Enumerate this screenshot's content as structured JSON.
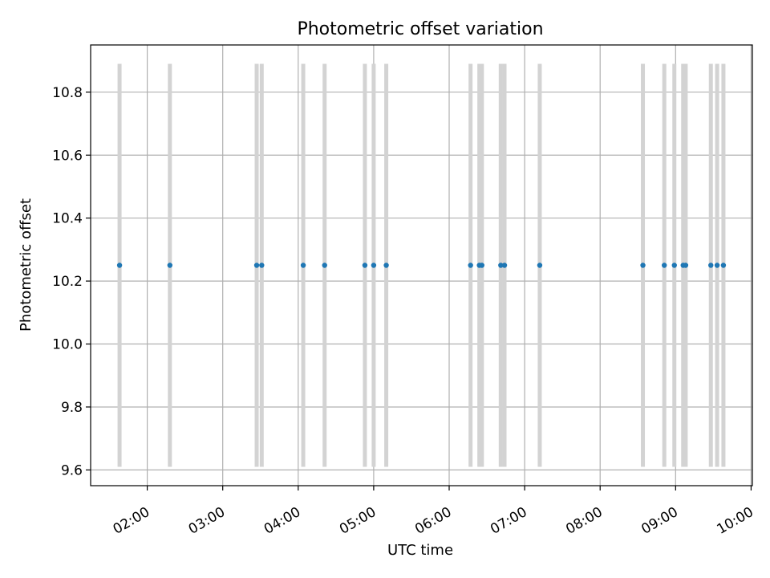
{
  "chart_data": {
    "type": "scatter",
    "title": "Photometric offset variation",
    "xlabel": "UTC time",
    "ylabel": "Photometric offset",
    "grid": true,
    "xlim": [
      "01:15",
      "10:01"
    ],
    "ylim": [
      9.55,
      10.95
    ],
    "x_ticks": [
      "02:00",
      "03:00",
      "04:00",
      "05:00",
      "06:00",
      "07:00",
      "08:00",
      "09:00",
      "10:00"
    ],
    "y_ticks": [
      9.6,
      9.8,
      10.0,
      10.2,
      10.4,
      10.6,
      10.8
    ],
    "error_bar_range": [
      9.61,
      10.89
    ],
    "colors": {
      "points": "#1f77b4",
      "error_bars": "#d3d3d3",
      "grid": "#b0b0b0"
    },
    "series": [
      {
        "x": [
          "01:38",
          "02:18",
          "03:27",
          "03:31",
          "04:04",
          "04:21",
          "04:53",
          "05:00",
          "05:10",
          "06:17",
          "06:24",
          "06:26",
          "06:41",
          "06:44",
          "07:12",
          "08:34",
          "08:51",
          "08:59",
          "09:06",
          "09:08",
          "09:28",
          "09:33",
          "09:38"
        ],
        "y": [
          10.25,
          10.25,
          10.25,
          10.25,
          10.25,
          10.25,
          10.25,
          10.25,
          10.25,
          10.25,
          10.25,
          10.25,
          10.25,
          10.25,
          10.25,
          10.25,
          10.25,
          10.25,
          10.25,
          10.25,
          10.25,
          10.25,
          10.25
        ]
      }
    ]
  }
}
